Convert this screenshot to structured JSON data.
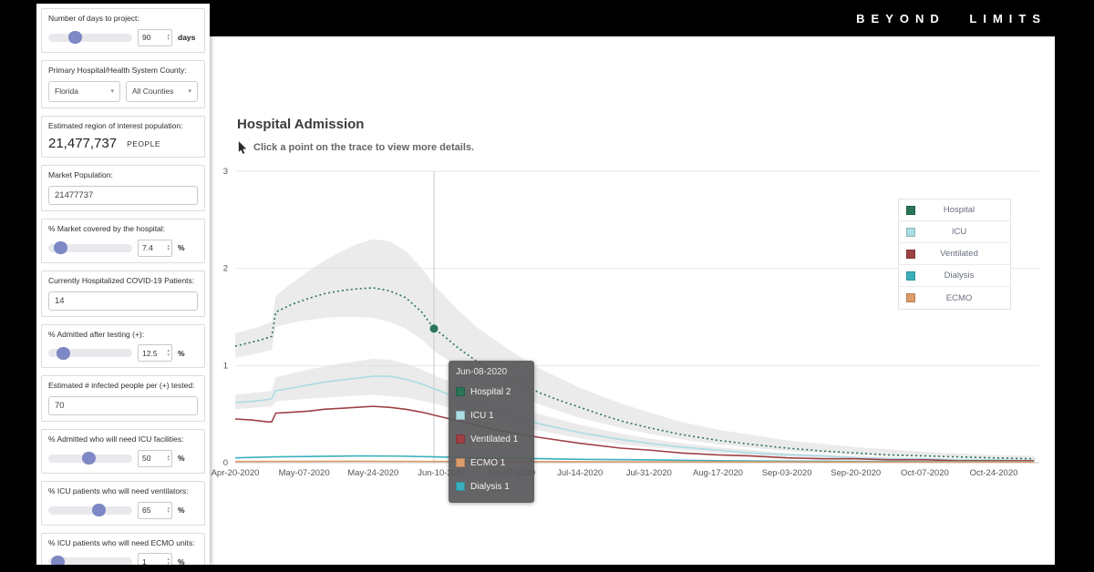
{
  "brand": {
    "logo": "BEYOND LIMITS"
  },
  "sidebar": {
    "controls": [
      {
        "type": "slider-number",
        "label": "Number of days to project:",
        "value": "90",
        "unit": "days",
        "slider_pos": 28
      },
      {
        "type": "double-select",
        "label": "Primary Hospital/Health System County:",
        "selects": [
          {
            "value": "Florida"
          },
          {
            "value": "All Counties"
          }
        ]
      },
      {
        "type": "stat",
        "label": "Estimated region of interest population:",
        "value": "21,477,737",
        "unit": "PEOPLE"
      },
      {
        "type": "text-input",
        "label": "Market Population:",
        "value": "21477737"
      },
      {
        "type": "slider-number",
        "label": "% Market covered by the hospital:",
        "value": "7.4",
        "unit": "%",
        "slider_pos": 8
      },
      {
        "type": "text-input",
        "label": "Currently Hospitalized COVID-19 Patients:",
        "value": "14"
      },
      {
        "type": "slider-number",
        "label": "% Admitted after testing (+):",
        "value": "12.5",
        "unit": "%",
        "slider_pos": 12
      },
      {
        "type": "text-input",
        "label": "Estimated # infected people per (+) tested:",
        "value": "70"
      },
      {
        "type": "slider-number",
        "label": "% Admitted who will need ICU facilities:",
        "value": "50",
        "unit": "%",
        "slider_pos": 48
      },
      {
        "type": "slider-number",
        "label": "% ICU patients who will need ventilators:",
        "value": "65",
        "unit": "%",
        "slider_pos": 62
      },
      {
        "type": "slider-number",
        "label": "% ICU patients who will need ECMO units:",
        "value": "1",
        "unit": "%",
        "slider_pos": 4
      }
    ]
  },
  "chart": {
    "title": "Hospital Admission",
    "subtitle": "Click a point on the trace to view more details.",
    "selection": {
      "date": "Jun-08-2020",
      "t": 49,
      "marker_series": "Hospital",
      "marker_value": 1.38
    }
  },
  "legend": {
    "items": [
      {
        "label": "Hospital",
        "color": "#2a7457"
      },
      {
        "label": "ICU",
        "color": "#abdce3"
      },
      {
        "label": "Ventilated",
        "color": "#9e4044"
      },
      {
        "label": "Dialysis",
        "color": "#3ab0bd"
      },
      {
        "label": "ECMO",
        "color": "#dd9c6b"
      }
    ]
  },
  "tooltip": {
    "date": "Jun-08-2020",
    "rows": [
      {
        "label": "Hospital 2",
        "color": "#2a7457"
      },
      {
        "label": "ICU 1",
        "color": "#abdce3"
      },
      {
        "label": "Ventilated 1",
        "color": "#9e4044"
      },
      {
        "label": "ECMO 1",
        "color": "#dd9c6b"
      },
      {
        "label": "Dialysis 1",
        "color": "#3ab0bd"
      }
    ]
  },
  "chart_data": {
    "type": "line",
    "title": "Hospital Admission",
    "xlabel": "",
    "ylabel": "",
    "ylim": [
      0,
      3
    ],
    "y_ticks": [
      0,
      1,
      2,
      3
    ],
    "x_tick_interval_days": 17,
    "x_tick_labels": [
      "Apr-20-2020",
      "May-07-2020",
      "May-24-2020",
      "Jun-10-2020",
      "Jun-27-2020",
      "Jul-14-2020",
      "Jul-31-2020",
      "Aug-17-2020",
      "Sep-03-2020",
      "Sep-20-2020",
      "Oct-07-2020",
      "Oct-24-2020"
    ],
    "legend_position": "right",
    "grid": true,
    "series": [
      {
        "name": "Hospital",
        "color": "#2a7457",
        "style": "dotted",
        "points": [
          [
            0,
            1.2
          ],
          [
            3,
            1.23
          ],
          [
            6,
            1.26
          ],
          [
            9,
            1.3
          ],
          [
            10,
            1.55
          ],
          [
            14,
            1.63
          ],
          [
            18,
            1.69
          ],
          [
            22,
            1.74
          ],
          [
            26,
            1.77
          ],
          [
            30,
            1.79
          ],
          [
            34,
            1.8
          ],
          [
            38,
            1.77
          ],
          [
            42,
            1.7
          ],
          [
            46,
            1.55
          ],
          [
            49,
            1.38
          ],
          [
            51,
            1.32
          ],
          [
            55,
            1.18
          ],
          [
            60,
            1.03
          ],
          [
            64,
            0.95
          ],
          [
            68,
            0.87
          ],
          [
            75,
            0.72
          ],
          [
            80,
            0.64
          ],
          [
            85,
            0.57
          ],
          [
            92,
            0.47
          ],
          [
            96,
            0.42
          ],
          [
            102,
            0.36
          ],
          [
            110,
            0.29
          ],
          [
            119,
            0.23
          ],
          [
            127,
            0.19
          ],
          [
            136,
            0.15
          ],
          [
            145,
            0.12
          ],
          [
            153,
            0.1
          ],
          [
            161,
            0.08
          ],
          [
            170,
            0.07
          ],
          [
            178,
            0.06
          ],
          [
            187,
            0.05
          ],
          [
            197,
            0.04
          ]
        ]
      },
      {
        "name": "ICU",
        "color": "#abdce3",
        "style": "solid",
        "points": [
          [
            0,
            0.62
          ],
          [
            4,
            0.63
          ],
          [
            8,
            0.65
          ],
          [
            9,
            0.66
          ],
          [
            10,
            0.74
          ],
          [
            14,
            0.77
          ],
          [
            18,
            0.8
          ],
          [
            22,
            0.83
          ],
          [
            26,
            0.85
          ],
          [
            30,
            0.87
          ],
          [
            34,
            0.89
          ],
          [
            38,
            0.89
          ],
          [
            42,
            0.86
          ],
          [
            46,
            0.81
          ],
          [
            49,
            0.76
          ],
          [
            51,
            0.73
          ],
          [
            55,
            0.66
          ],
          [
            60,
            0.58
          ],
          [
            64,
            0.53
          ],
          [
            68,
            0.48
          ],
          [
            75,
            0.4
          ],
          [
            85,
            0.31
          ],
          [
            95,
            0.24
          ],
          [
            102,
            0.2
          ],
          [
            110,
            0.16
          ],
          [
            119,
            0.13
          ],
          [
            127,
            0.1
          ],
          [
            136,
            0.08
          ],
          [
            145,
            0.07
          ],
          [
            153,
            0.05
          ],
          [
            161,
            0.04
          ],
          [
            170,
            0.04
          ],
          [
            178,
            0.03
          ],
          [
            187,
            0.03
          ],
          [
            197,
            0.02
          ]
        ]
      },
      {
        "name": "Ventilated",
        "color": "#9e4044",
        "style": "solid",
        "points": [
          [
            0,
            0.45
          ],
          [
            4,
            0.44
          ],
          [
            8,
            0.42
          ],
          [
            9,
            0.42
          ],
          [
            10,
            0.51
          ],
          [
            14,
            0.52
          ],
          [
            18,
            0.53
          ],
          [
            22,
            0.55
          ],
          [
            26,
            0.56
          ],
          [
            30,
            0.57
          ],
          [
            34,
            0.58
          ],
          [
            38,
            0.57
          ],
          [
            42,
            0.55
          ],
          [
            46,
            0.52
          ],
          [
            49,
            0.49
          ],
          [
            51,
            0.47
          ],
          [
            55,
            0.43
          ],
          [
            60,
            0.38
          ],
          [
            64,
            0.34
          ],
          [
            68,
            0.31
          ],
          [
            75,
            0.26
          ],
          [
            85,
            0.2
          ],
          [
            95,
            0.15
          ],
          [
            102,
            0.13
          ],
          [
            110,
            0.1
          ],
          [
            119,
            0.08
          ],
          [
            127,
            0.07
          ],
          [
            136,
            0.05
          ],
          [
            145,
            0.04
          ],
          [
            153,
            0.04
          ],
          [
            161,
            0.03
          ],
          [
            170,
            0.03
          ],
          [
            178,
            0.02
          ],
          [
            187,
            0.02
          ],
          [
            197,
            0.02
          ]
        ]
      },
      {
        "name": "Dialysis",
        "color": "#3ab0bd",
        "style": "solid",
        "points": [
          [
            0,
            0.05
          ],
          [
            10,
            0.06
          ],
          [
            20,
            0.065
          ],
          [
            30,
            0.07
          ],
          [
            40,
            0.068
          ],
          [
            49,
            0.06
          ],
          [
            60,
            0.05
          ],
          [
            70,
            0.045
          ],
          [
            85,
            0.035
          ],
          [
            100,
            0.03
          ],
          [
            120,
            0.02
          ],
          [
            140,
            0.015
          ],
          [
            160,
            0.012
          ],
          [
            187,
            0.01
          ],
          [
            197,
            0.01
          ]
        ]
      },
      {
        "name": "ECMO",
        "color": "#dd9c6b",
        "style": "solid",
        "points": [
          [
            0,
            0.012
          ],
          [
            30,
            0.015
          ],
          [
            49,
            0.013
          ],
          [
            85,
            0.01
          ],
          [
            130,
            0.008
          ],
          [
            187,
            0.006
          ],
          [
            197,
            0.006
          ]
        ]
      }
    ],
    "bands": [
      {
        "name": "Hospital CI",
        "color": "#d8d8d8",
        "upper": [
          [
            0,
            1.33
          ],
          [
            6,
            1.4
          ],
          [
            9,
            1.45
          ],
          [
            10,
            1.72
          ],
          [
            14,
            1.85
          ],
          [
            18,
            1.97
          ],
          [
            22,
            2.08
          ],
          [
            26,
            2.17
          ],
          [
            30,
            2.25
          ],
          [
            34,
            2.3
          ],
          [
            38,
            2.28
          ],
          [
            42,
            2.18
          ],
          [
            46,
            2.0
          ],
          [
            49,
            1.83
          ],
          [
            55,
            1.57
          ],
          [
            60,
            1.38
          ],
          [
            68,
            1.15
          ],
          [
            75,
            0.97
          ],
          [
            85,
            0.77
          ],
          [
            95,
            0.61
          ],
          [
            102,
            0.52
          ],
          [
            110,
            0.42
          ],
          [
            119,
            0.34
          ],
          [
            136,
            0.23
          ],
          [
            153,
            0.16
          ],
          [
            170,
            0.11
          ],
          [
            187,
            0.08
          ],
          [
            197,
            0.07
          ]
        ],
        "lower": [
          [
            0,
            1.08
          ],
          [
            6,
            1.13
          ],
          [
            9,
            1.16
          ],
          [
            10,
            1.4
          ],
          [
            14,
            1.44
          ],
          [
            18,
            1.47
          ],
          [
            22,
            1.49
          ],
          [
            26,
            1.5
          ],
          [
            30,
            1.5
          ],
          [
            34,
            1.49
          ],
          [
            38,
            1.45
          ],
          [
            42,
            1.38
          ],
          [
            46,
            1.27
          ],
          [
            49,
            1.15
          ],
          [
            55,
            0.99
          ],
          [
            60,
            0.87
          ],
          [
            68,
            0.72
          ],
          [
            75,
            0.6
          ],
          [
            85,
            0.46
          ],
          [
            95,
            0.36
          ],
          [
            102,
            0.3
          ],
          [
            110,
            0.24
          ],
          [
            119,
            0.19
          ],
          [
            136,
            0.12
          ],
          [
            153,
            0.08
          ],
          [
            170,
            0.06
          ],
          [
            187,
            0.04
          ],
          [
            197,
            0.03
          ]
        ]
      },
      {
        "name": "ICU CI",
        "color": "#d8d8d8",
        "upper": [
          [
            0,
            0.7
          ],
          [
            9,
            0.74
          ],
          [
            10,
            0.88
          ],
          [
            18,
            0.96
          ],
          [
            26,
            1.02
          ],
          [
            34,
            1.07
          ],
          [
            38,
            1.06
          ],
          [
            42,
            1.02
          ],
          [
            46,
            0.96
          ],
          [
            49,
            0.9
          ],
          [
            55,
            0.8
          ],
          [
            60,
            0.71
          ],
          [
            68,
            0.59
          ],
          [
            75,
            0.5
          ],
          [
            85,
            0.39
          ],
          [
            95,
            0.3
          ],
          [
            102,
            0.25
          ],
          [
            110,
            0.2
          ],
          [
            119,
            0.16
          ],
          [
            136,
            0.1
          ],
          [
            153,
            0.07
          ],
          [
            170,
            0.05
          ],
          [
            187,
            0.04
          ],
          [
            197,
            0.03
          ]
        ],
        "lower": [
          [
            0,
            0.55
          ],
          [
            9,
            0.58
          ],
          [
            10,
            0.63
          ],
          [
            18,
            0.66
          ],
          [
            26,
            0.68
          ],
          [
            34,
            0.7
          ],
          [
            42,
            0.67
          ],
          [
            49,
            0.61
          ],
          [
            55,
            0.54
          ],
          [
            60,
            0.48
          ],
          [
            68,
            0.4
          ],
          [
            75,
            0.33
          ],
          [
            85,
            0.25
          ],
          [
            95,
            0.19
          ],
          [
            102,
            0.16
          ],
          [
            110,
            0.13
          ],
          [
            119,
            0.1
          ],
          [
            136,
            0.06
          ],
          [
            153,
            0.04
          ],
          [
            170,
            0.03
          ],
          [
            187,
            0.02
          ],
          [
            197,
            0.02
          ]
        ]
      }
    ]
  }
}
